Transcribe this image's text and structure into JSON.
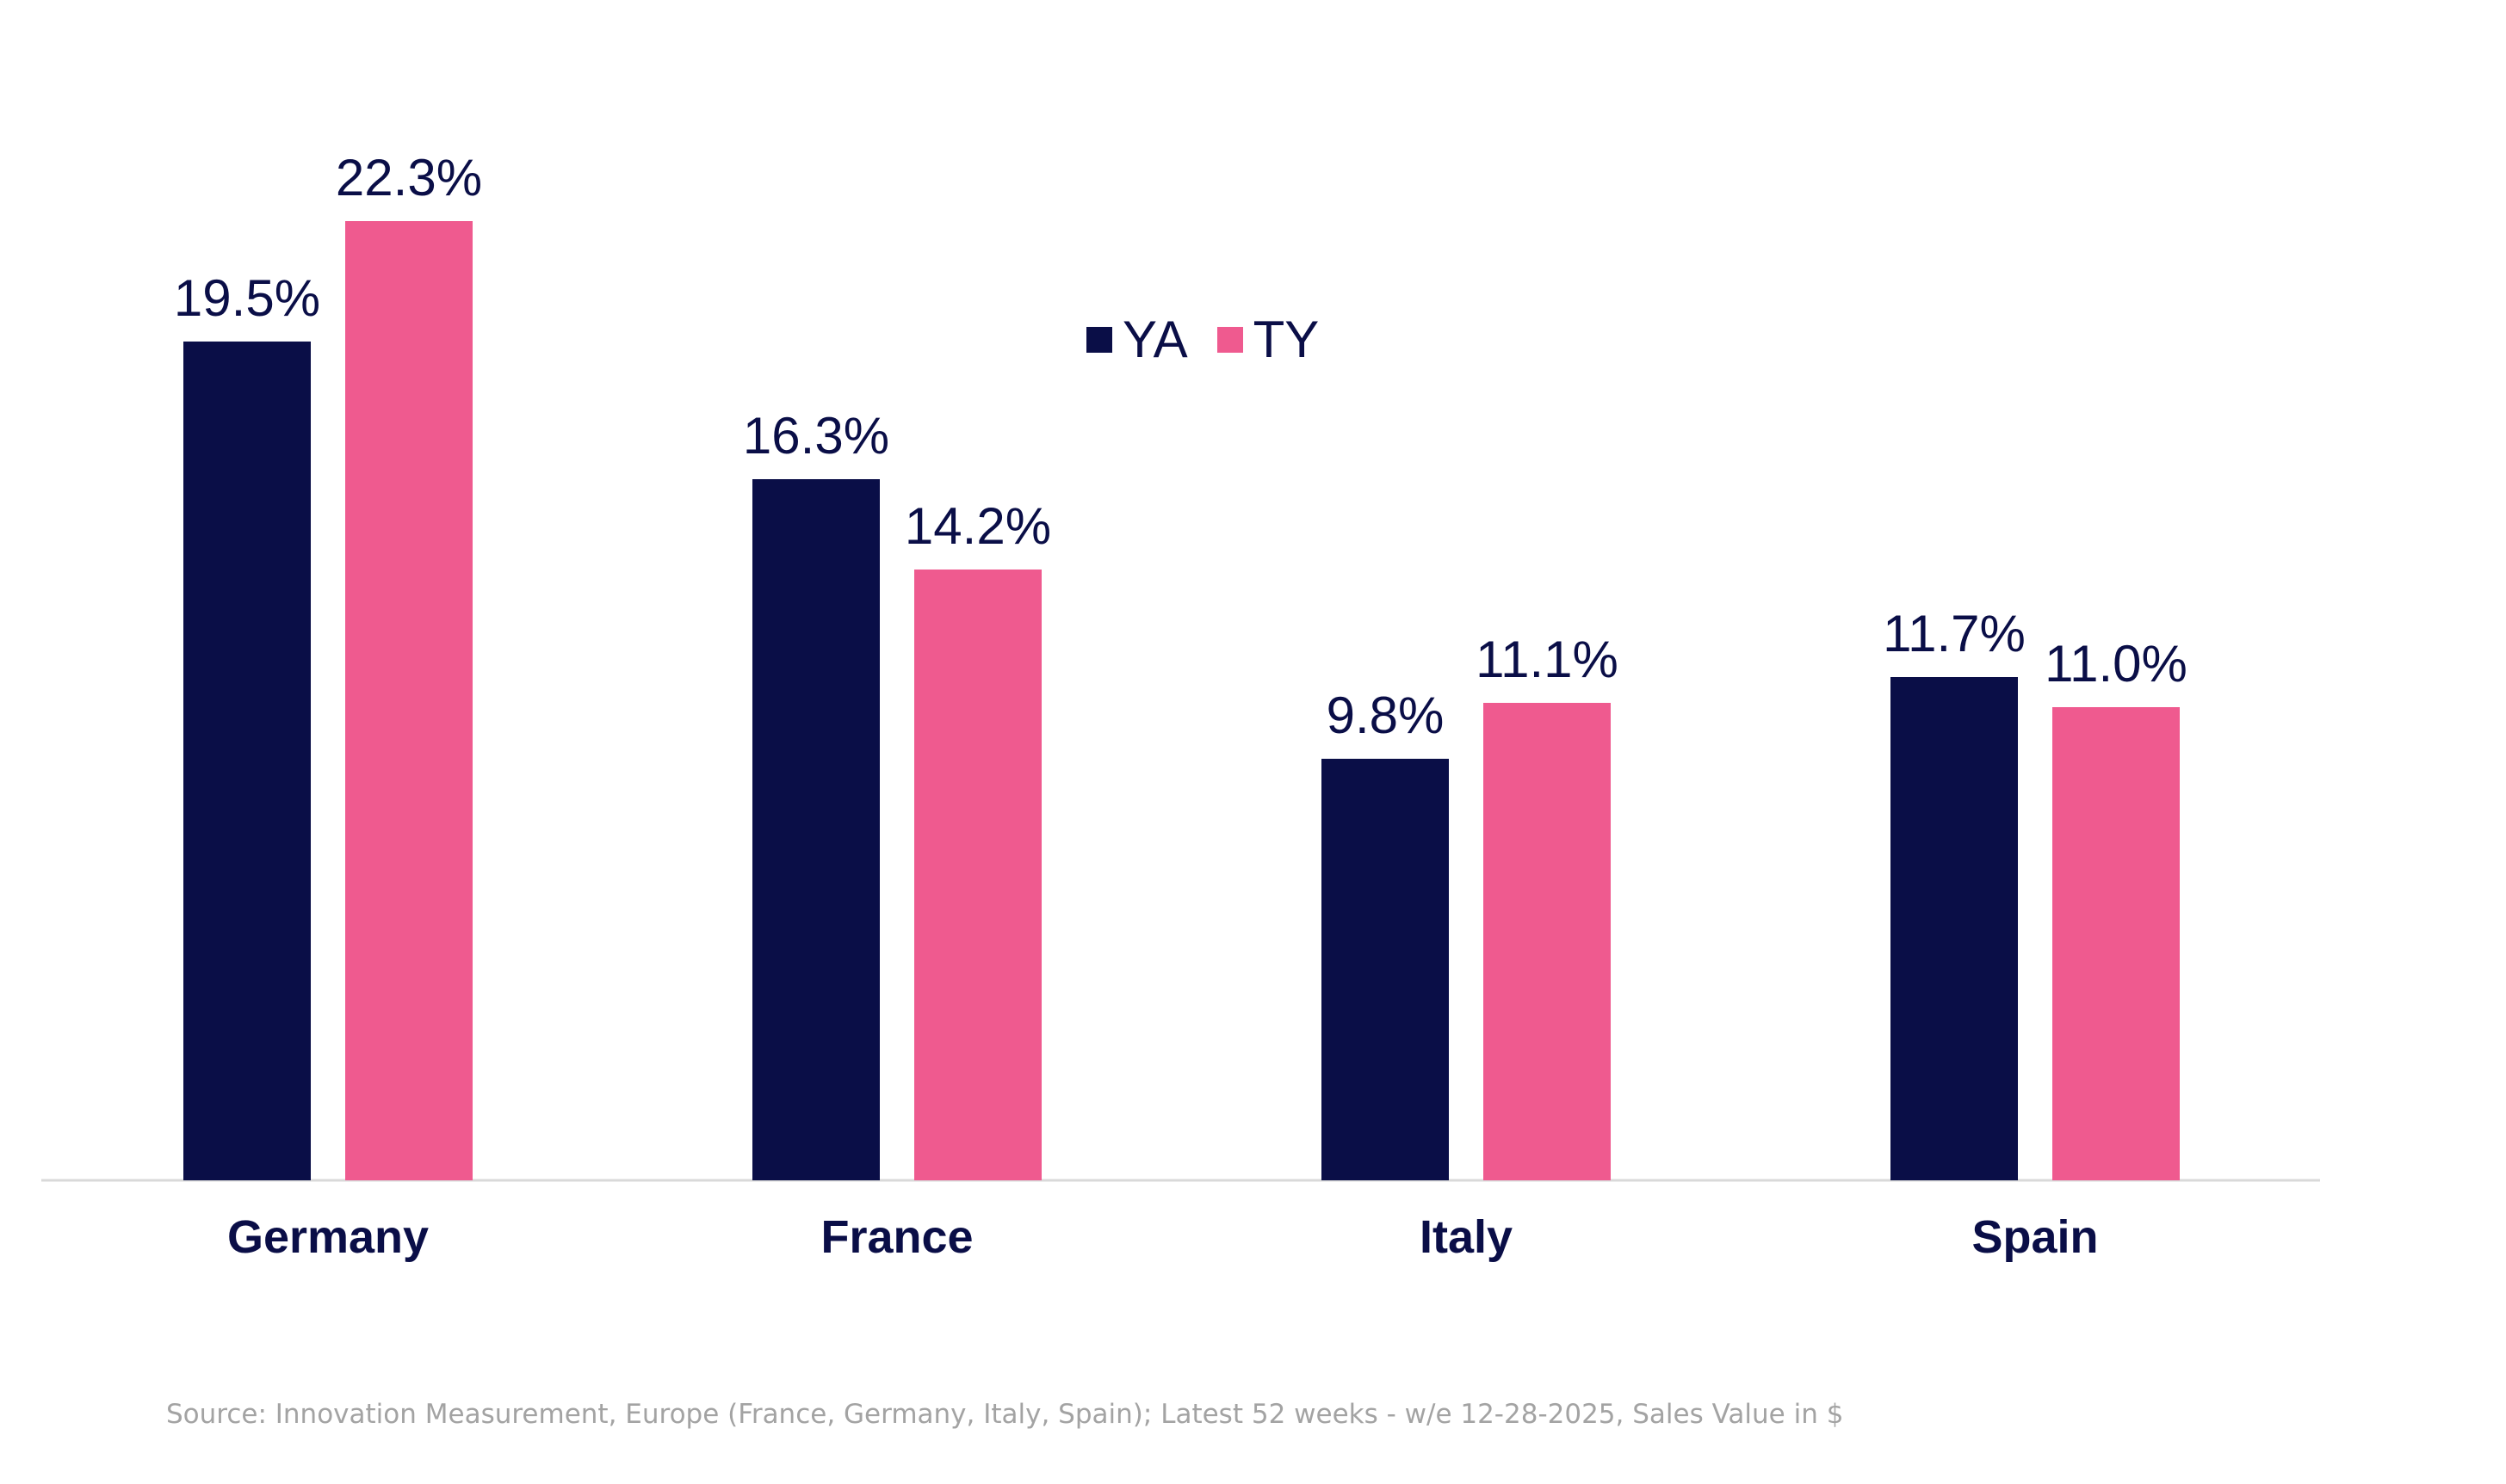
{
  "chart_data": {
    "type": "bar",
    "categories": [
      "Germany",
      "France",
      "Italy",
      "Spain"
    ],
    "series": [
      {
        "name": "YA",
        "values": [
          19.5,
          16.3,
          9.8,
          11.7
        ],
        "labels": [
          "19.5%",
          "16.3%",
          "9.8%",
          "11.7%"
        ],
        "color": "#0a0e47"
      },
      {
        "name": "TY",
        "values": [
          22.3,
          14.2,
          11.1,
          11.0
        ],
        "labels": [
          "22.3%",
          "14.2%",
          "11.1%",
          "11.0%"
        ],
        "color": "#ef5a8f"
      }
    ],
    "ylim": [
      0,
      25
    ],
    "grid": false,
    "legend": "top-center",
    "value_format": "percent",
    "title": "",
    "xlabel": "",
    "ylabel": ""
  },
  "source_note": "Source: Innovation Measurement, Europe (France, Germany, Italy, Spain); Latest 52 weeks - w/e 12-28-2025, Sales Value in $",
  "colors": {
    "axis_line": "#d9d9d9",
    "text_dark": "#0a0e47",
    "source_text": "#a3a3a3"
  }
}
